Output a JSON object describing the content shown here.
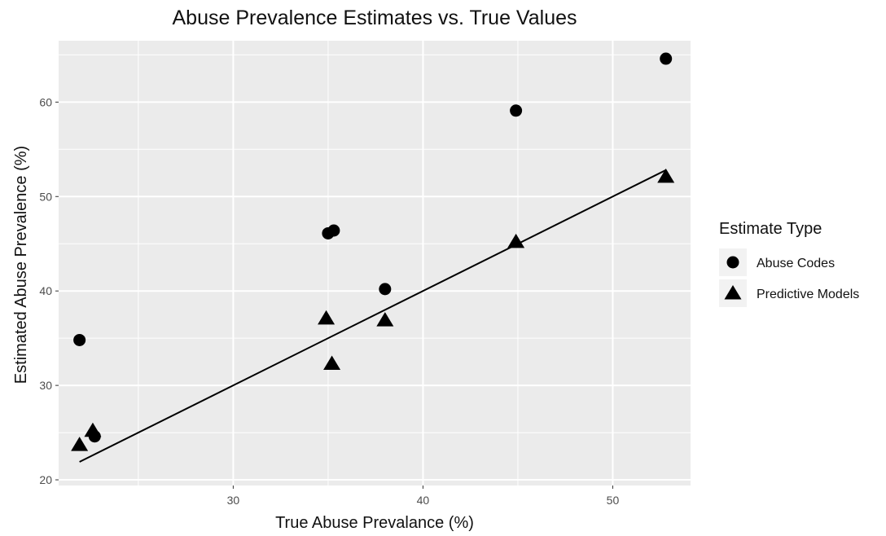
{
  "chart_data": {
    "type": "scatter",
    "title": "Abuse Prevalence Estimates vs. True Values",
    "xlabel": "True Abuse Prevalance (%)",
    "ylabel": "Estimated Abuse Prevalence (%)",
    "xlim": [
      20.8,
      54.1
    ],
    "ylim": [
      19.4,
      66.5
    ],
    "x_ticks": [
      30,
      40,
      50
    ],
    "y_ticks": [
      20,
      30,
      40,
      50,
      60
    ],
    "grid": true,
    "legend": {
      "title": "Estimate Type",
      "position": "right"
    },
    "series": [
      {
        "name": "Abuse Codes",
        "marker": "circle",
        "points": [
          {
            "x": 21.9,
            "y": 34.8
          },
          {
            "x": 22.7,
            "y": 24.6
          },
          {
            "x": 35.0,
            "y": 46.1
          },
          {
            "x": 35.3,
            "y": 46.4
          },
          {
            "x": 38.0,
            "y": 40.2
          },
          {
            "x": 44.9,
            "y": 59.1
          },
          {
            "x": 52.8,
            "y": 64.6
          }
        ]
      },
      {
        "name": "Predictive Models",
        "marker": "triangle",
        "points": [
          {
            "x": 21.9,
            "y": 23.7
          },
          {
            "x": 22.6,
            "y": 25.2
          },
          {
            "x": 34.9,
            "y": 37.1
          },
          {
            "x": 35.2,
            "y": 32.3
          },
          {
            "x": 38.0,
            "y": 36.9
          },
          {
            "x": 44.9,
            "y": 45.2
          },
          {
            "x": 52.8,
            "y": 52.1
          }
        ]
      }
    ],
    "reference_line": {
      "x": [
        21.9,
        52.8
      ],
      "y": [
        21.9,
        52.8
      ]
    },
    "colors": {
      "panel": "#ebebeb",
      "grid": "#ffffff",
      "marker": "#000000"
    }
  }
}
